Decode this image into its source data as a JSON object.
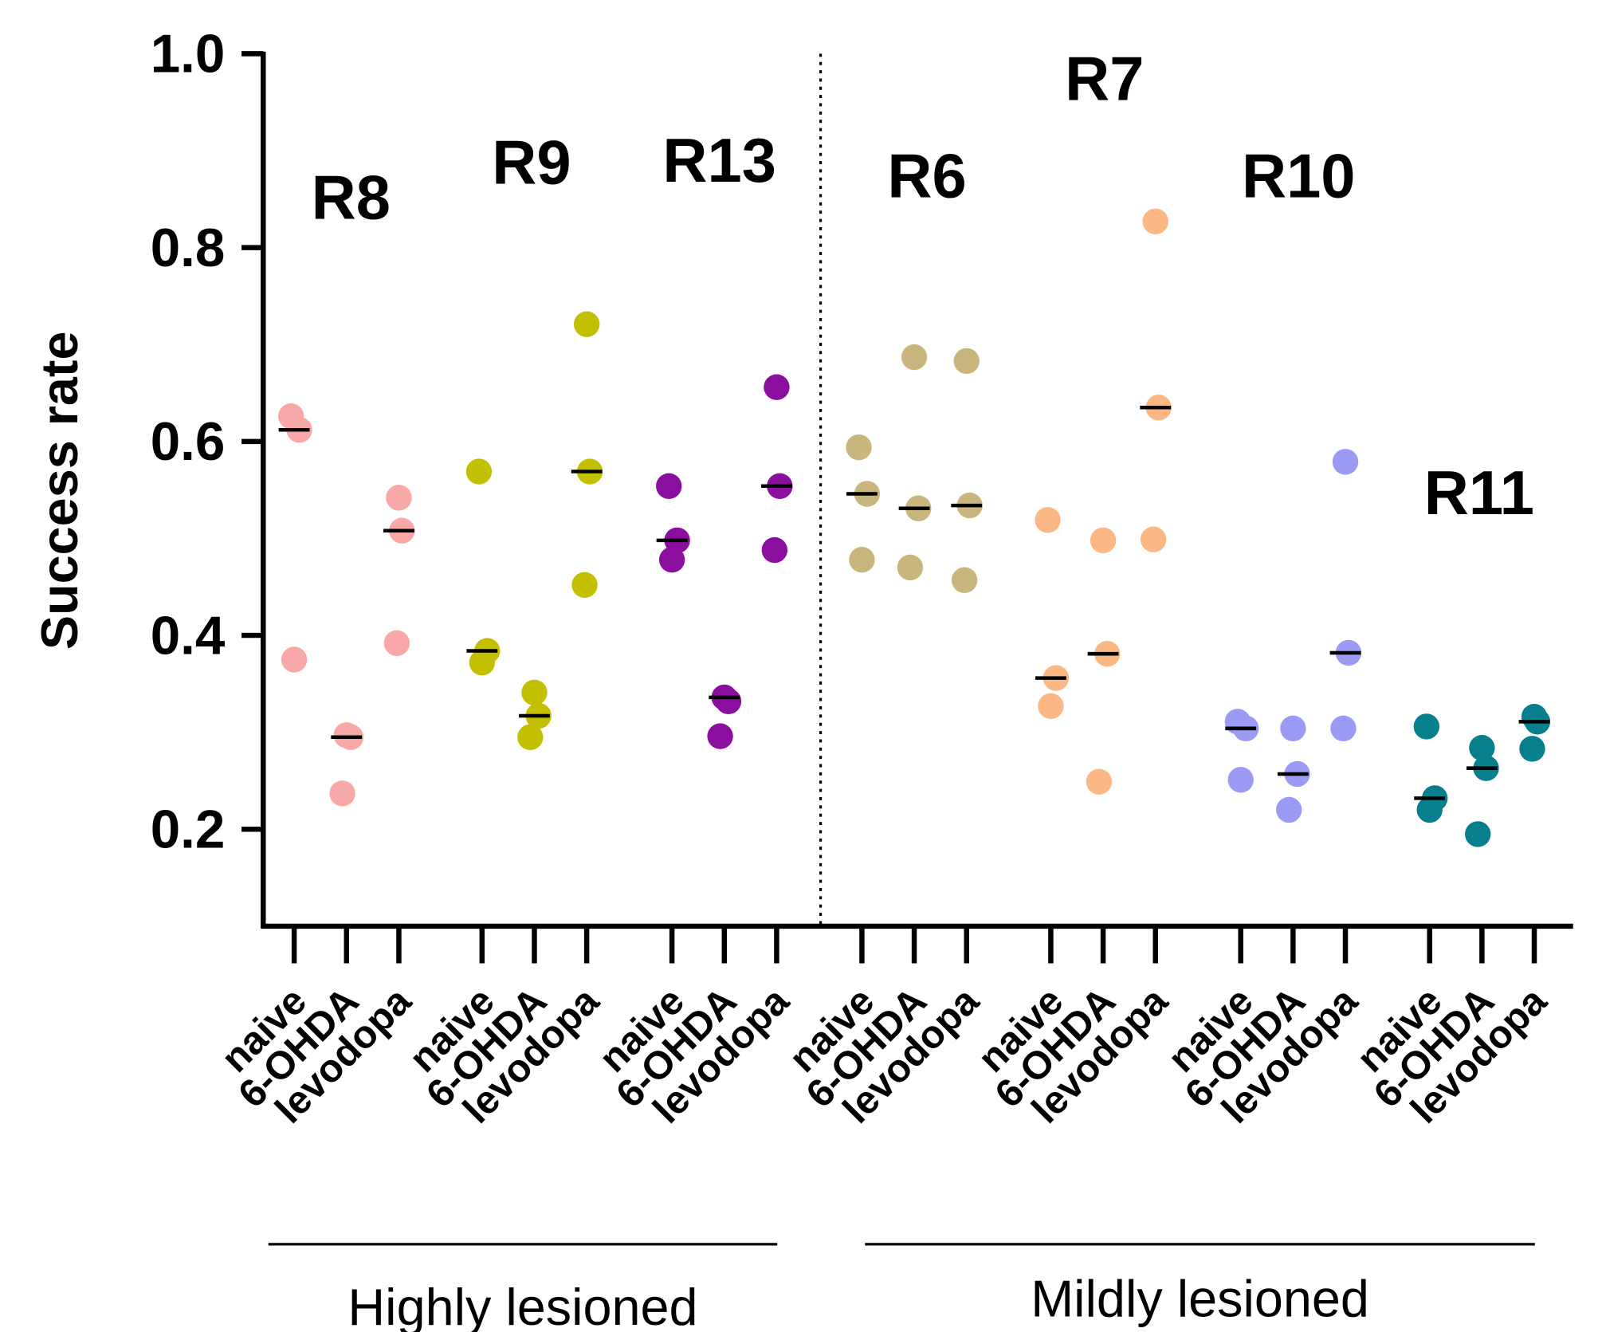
{
  "chart_data": {
    "type": "dotplot",
    "ylabel": "Success rate",
    "ylim": [
      0.1,
      1.0
    ],
    "yticks": [
      0.2,
      0.4,
      0.6,
      0.8,
      {
        "value": 1.0,
        "label": "1.0"
      }
    ],
    "categories": [
      "naive",
      "6-OHDA",
      "levodopa"
    ],
    "series": [
      {
        "name": "R8",
        "color": "#f9a8a8",
        "values": [
          [
            0.626,
            0.612,
            0.375
          ],
          [
            0.297,
            0.295,
            0.237
          ],
          [
            0.542,
            0.508,
            0.392
          ]
        ],
        "medians": [
          0.612,
          0.295,
          0.508
        ]
      },
      {
        "name": "R9",
        "color": "#c2c000",
        "values": [
          [
            0.569,
            0.384,
            0.372
          ],
          [
            0.341,
            0.317,
            0.295
          ],
          [
            0.721,
            0.569,
            0.452
          ]
        ],
        "medians": [
          0.384,
          0.317,
          0.569
        ]
      },
      {
        "name": "R13",
        "color": "#8b0f9e",
        "values": [
          [
            0.554,
            0.498,
            0.478
          ],
          [
            0.336,
            0.332,
            0.296
          ],
          [
            0.656,
            0.554,
            0.488
          ]
        ],
        "medians": [
          0.498,
          0.336,
          0.554
        ]
      },
      {
        "name": "R6",
        "color": "#c9b67e",
        "values": [
          [
            0.594,
            0.546,
            0.478
          ],
          [
            0.687,
            0.531,
            0.47
          ],
          [
            0.683,
            0.534,
            0.457
          ]
        ],
        "medians": [
          0.546,
          0.531,
          0.534
        ]
      },
      {
        "name": "R7",
        "color": "#fbb784",
        "values": [
          [
            0.519,
            0.356,
            0.327
          ],
          [
            0.498,
            0.381,
            0.249
          ],
          [
            0.827,
            0.635,
            0.499
          ]
        ],
        "medians": [
          0.356,
          0.381,
          0.635
        ]
      },
      {
        "name": "R10",
        "color": "#9b9af5",
        "values": [
          [
            0.311,
            0.304,
            0.251
          ],
          [
            0.304,
            0.257,
            0.22
          ],
          [
            0.579,
            0.382,
            0.304
          ]
        ],
        "medians": [
          0.304,
          0.257,
          0.382
        ]
      },
      {
        "name": "R11",
        "color": "#087f8c",
        "values": [
          [
            0.306,
            0.232,
            0.22
          ],
          [
            0.284,
            0.263,
            0.195
          ],
          [
            0.316,
            0.311,
            0.283
          ]
        ],
        "medians": [
          0.232,
          0.263,
          0.311
        ]
      }
    ],
    "groups": [
      {
        "label": "Highly lesioned"
      },
      {
        "label": "Mildly lesioned"
      }
    ]
  }
}
